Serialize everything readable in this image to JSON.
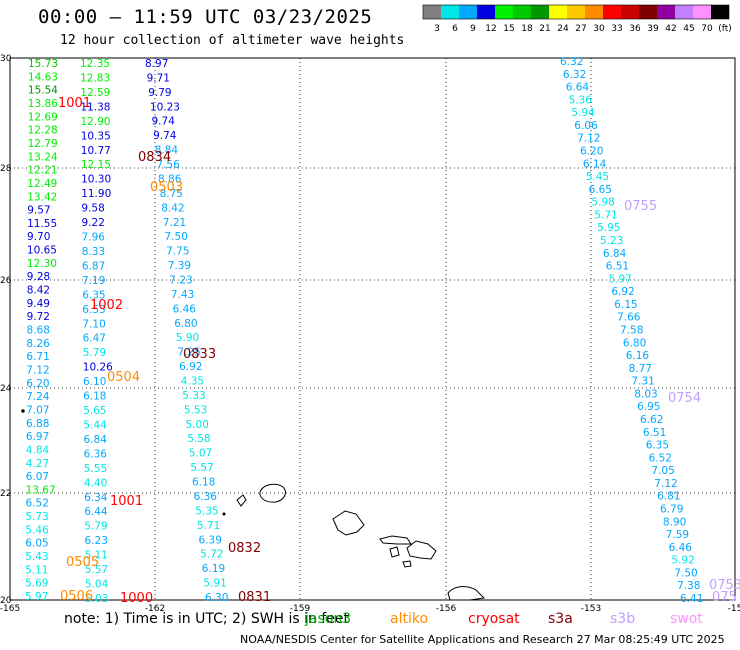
{
  "header": {
    "title": "00:00 — 11:59 UTC 03/23/2025",
    "subtitle": "12 hour collection of altimeter wave heights"
  },
  "colorbar": {
    "colors": [
      "#7f7f7f",
      "#00e5e5",
      "#00a8ff",
      "#0000e0",
      "#00ee00",
      "#00c800",
      "#009600",
      "#ffff00",
      "#ffc800",
      "#ff8c00",
      "#ff0000",
      "#c80000",
      "#800000",
      "#9000a0",
      "#c080ff",
      "#ff90ff",
      "#000000"
    ],
    "labels": [
      "3",
      "6",
      "9",
      "12",
      "15",
      "18",
      "21",
      "24",
      "27",
      "30",
      "33",
      "36",
      "39",
      "42",
      "45",
      "70",
      "(ft)"
    ]
  },
  "axes": {
    "x_ticks": [
      "-165",
      "-162",
      "-159",
      "-156",
      "-153",
      "-15"
    ],
    "y_ticks": [
      "30",
      "28",
      "26",
      "24",
      "22",
      "20"
    ]
  },
  "readings_left": [
    {
      "v": "15.73",
      "c": "#00c800"
    },
    {
      "v": "14.63",
      "c": "#00ee00"
    },
    {
      "v": "15.54",
      "c": "#009600"
    },
    {
      "v": "13.86",
      "c": "#00ee00"
    },
    {
      "v": "12.69",
      "c": "#00ee00"
    },
    {
      "v": "12.28",
      "c": "#00ee00"
    },
    {
      "v": "12.79",
      "c": "#00ee00"
    },
    {
      "v": "13.24",
      "c": "#00ee00"
    },
    {
      "v": "12.21",
      "c": "#00ee00"
    },
    {
      "v": "12.49",
      "c": "#00ee00"
    },
    {
      "v": "13.42",
      "c": "#00ee00"
    },
    {
      "v": "9.57",
      "c": "#0000e0"
    },
    {
      "v": "11.55",
      "c": "#0000e0"
    },
    {
      "v": "9.70",
      "c": "#0000e0"
    },
    {
      "v": "10.65",
      "c": "#0000e0"
    },
    {
      "v": "12.30",
      "c": "#00ee00"
    },
    {
      "v": "9.28",
      "c": "#0000e0"
    },
    {
      "v": "8.42",
      "c": "#0000e0"
    },
    {
      "v": "9.49",
      "c": "#0000e0"
    },
    {
      "v": "9.72",
      "c": "#0000e0"
    },
    {
      "v": "8.68",
      "c": "#00a8ff"
    },
    {
      "v": "8.26",
      "c": "#00a8ff"
    },
    {
      "v": "6.71",
      "c": "#00a8ff"
    },
    {
      "v": "7.12",
      "c": "#00a8ff"
    },
    {
      "v": "6.20",
      "c": "#00a8ff"
    },
    {
      "v": "7.24",
      "c": "#00a8ff"
    },
    {
      "v": "7.07",
      "c": "#00a8ff"
    },
    {
      "v": "6.88",
      "c": "#00a8ff"
    },
    {
      "v": "6.97",
      "c": "#00a8ff"
    },
    {
      "v": "4.84",
      "c": "#00e5e5"
    },
    {
      "v": "4.27",
      "c": "#00e5e5"
    },
    {
      "v": "6.07",
      "c": "#00a8ff"
    },
    {
      "v": "13.67",
      "c": "#00ee00"
    },
    {
      "v": "6.52",
      "c": "#00a8ff"
    },
    {
      "v": "5.73",
      "c": "#00e5e5"
    },
    {
      "v": "5.46",
      "c": "#00e5e5"
    },
    {
      "v": "6.05",
      "c": "#00a8ff"
    },
    {
      "v": "5.43",
      "c": "#00e5e5"
    },
    {
      "v": "5.11",
      "c": "#00e5e5"
    },
    {
      "v": "5.69",
      "c": "#00e5e5"
    },
    {
      "v": "5.97",
      "c": "#00e5e5"
    }
  ],
  "readings_mid": [
    {
      "v": "12.35",
      "c": "#00ee00"
    },
    {
      "v": "12.83",
      "c": "#00ee00"
    },
    {
      "v": "12.59",
      "c": "#00ee00"
    },
    {
      "v": "11.38",
      "c": "#0000e0"
    },
    {
      "v": "12.90",
      "c": "#00ee00"
    },
    {
      "v": "10.35",
      "c": "#0000e0"
    },
    {
      "v": "10.77",
      "c": "#0000e0"
    },
    {
      "v": "12.15",
      "c": "#00ee00"
    },
    {
      "v": "10.30",
      "c": "#0000e0"
    },
    {
      "v": "11.90",
      "c": "#0000e0"
    },
    {
      "v": "9.58",
      "c": "#0000e0"
    },
    {
      "v": "9.22",
      "c": "#0000e0"
    },
    {
      "v": "7.96",
      "c": "#00a8ff"
    },
    {
      "v": "8.33",
      "c": "#00a8ff"
    },
    {
      "v": "6.87",
      "c": "#00a8ff"
    },
    {
      "v": "7.19",
      "c": "#00a8ff"
    },
    {
      "v": "6.35",
      "c": "#00a8ff"
    },
    {
      "v": "6.53",
      "c": "#00a8ff"
    },
    {
      "v": "7.10",
      "c": "#00a8ff"
    },
    {
      "v": "6.47",
      "c": "#00a8ff"
    },
    {
      "v": "5.79",
      "c": "#00e5e5"
    },
    {
      "v": "10.26",
      "c": "#0000e0"
    },
    {
      "v": "6.10",
      "c": "#00a8ff"
    },
    {
      "v": "6.18",
      "c": "#00a8ff"
    },
    {
      "v": "5.65",
      "c": "#00e5e5"
    },
    {
      "v": "5.44",
      "c": "#00e5e5"
    },
    {
      "v": "6.84",
      "c": "#00a8ff"
    },
    {
      "v": "6.36",
      "c": "#00a8ff"
    },
    {
      "v": "5.55",
      "c": "#00e5e5"
    },
    {
      "v": "4.40",
      "c": "#00e5e5"
    },
    {
      "v": "6.34",
      "c": "#00a8ff"
    },
    {
      "v": "6.44",
      "c": "#00a8ff"
    },
    {
      "v": "5.79",
      "c": "#00e5e5"
    },
    {
      "v": "6.23",
      "c": "#00a8ff"
    },
    {
      "v": "5.11",
      "c": "#00e5e5"
    },
    {
      "v": "5.57",
      "c": "#00e5e5"
    },
    {
      "v": "5.04",
      "c": "#00e5e5"
    },
    {
      "v": "5.03",
      "c": "#00e5e5"
    }
  ],
  "readings_mid2": [
    {
      "v": "8.97",
      "c": "#0000e0"
    },
    {
      "v": "9.71",
      "c": "#0000e0"
    },
    {
      "v": "9.79",
      "c": "#0000e0"
    },
    {
      "v": "10.23",
      "c": "#0000e0"
    },
    {
      "v": "9.74",
      "c": "#0000e0"
    },
    {
      "v": "9.74",
      "c": "#0000e0"
    },
    {
      "v": "8.84",
      "c": "#00a8ff"
    },
    {
      "v": "7.56",
      "c": "#00a8ff"
    },
    {
      "v": "8.86",
      "c": "#00a8ff"
    },
    {
      "v": "8.75",
      "c": "#00a8ff"
    },
    {
      "v": "8.42",
      "c": "#00a8ff"
    },
    {
      "v": "7.21",
      "c": "#00a8ff"
    },
    {
      "v": "7.50",
      "c": "#00a8ff"
    },
    {
      "v": "7.75",
      "c": "#00a8ff"
    },
    {
      "v": "7.39",
      "c": "#00a8ff"
    },
    {
      "v": "7.23",
      "c": "#00a8ff"
    },
    {
      "v": "7.43",
      "c": "#00a8ff"
    },
    {
      "v": "6.46",
      "c": "#00a8ff"
    },
    {
      "v": "6.80",
      "c": "#00a8ff"
    },
    {
      "v": "5.90",
      "c": "#00e5e5"
    },
    {
      "v": "7.25",
      "c": "#00a8ff"
    },
    {
      "v": "6.92",
      "c": "#00a8ff"
    },
    {
      "v": "4.35",
      "c": "#00e5e5"
    },
    {
      "v": "5.33",
      "c": "#00e5e5"
    },
    {
      "v": "5.53",
      "c": "#00e5e5"
    },
    {
      "v": "5.00",
      "c": "#00e5e5"
    },
    {
      "v": "5.58",
      "c": "#00e5e5"
    },
    {
      "v": "5.07",
      "c": "#00e5e5"
    },
    {
      "v": "5.57",
      "c": "#00e5e5"
    },
    {
      "v": "6.18",
      "c": "#00a8ff"
    },
    {
      "v": "6.36",
      "c": "#00a8ff"
    },
    {
      "v": "5.35",
      "c": "#00e5e5"
    },
    {
      "v": "5.71",
      "c": "#00e5e5"
    },
    {
      "v": "6.39",
      "c": "#00a8ff"
    },
    {
      "v": "5.72",
      "c": "#00e5e5"
    },
    {
      "v": "6.19",
      "c": "#00a8ff"
    },
    {
      "v": "5.91",
      "c": "#00e5e5"
    },
    {
      "v": "6.30",
      "c": "#00a8ff"
    }
  ],
  "readings_right": [
    {
      "v": "6.32",
      "c": "#00a8ff"
    },
    {
      "v": "6.32",
      "c": "#00a8ff"
    },
    {
      "v": "6.64",
      "c": "#00a8ff"
    },
    {
      "v": "5.36",
      "c": "#00e5e5"
    },
    {
      "v": "5.94",
      "c": "#00e5e5"
    },
    {
      "v": "6.06",
      "c": "#00a8ff"
    },
    {
      "v": "7.12",
      "c": "#00a8ff"
    },
    {
      "v": "6.20",
      "c": "#00a8ff"
    },
    {
      "v": "6.14",
      "c": "#00a8ff"
    },
    {
      "v": "5.45",
      "c": "#00e5e5"
    },
    {
      "v": "6.65",
      "c": "#00a8ff"
    },
    {
      "v": "5.98",
      "c": "#00e5e5"
    },
    {
      "v": "5.71",
      "c": "#00e5e5"
    },
    {
      "v": "5.95",
      "c": "#00e5e5"
    },
    {
      "v": "5.23",
      "c": "#00e5e5"
    },
    {
      "v": "6.84",
      "c": "#00a8ff"
    },
    {
      "v": "6.51",
      "c": "#00a8ff"
    },
    {
      "v": "5.97",
      "c": "#00e5e5"
    },
    {
      "v": "6.92",
      "c": "#00a8ff"
    },
    {
      "v": "6.15",
      "c": "#00a8ff"
    },
    {
      "v": "7.66",
      "c": "#00a8ff"
    },
    {
      "v": "7.58",
      "c": "#00a8ff"
    },
    {
      "v": "6.80",
      "c": "#00a8ff"
    },
    {
      "v": "6.16",
      "c": "#00a8ff"
    },
    {
      "v": "8.77",
      "c": "#00a8ff"
    },
    {
      "v": "7.31",
      "c": "#00a8ff"
    },
    {
      "v": "8.03",
      "c": "#00a8ff"
    },
    {
      "v": "6.95",
      "c": "#00a8ff"
    },
    {
      "v": "6.62",
      "c": "#00a8ff"
    },
    {
      "v": "6.51",
      "c": "#00a8ff"
    },
    {
      "v": "6.35",
      "c": "#00a8ff"
    },
    {
      "v": "6.52",
      "c": "#00a8ff"
    },
    {
      "v": "7.05",
      "c": "#00a8ff"
    },
    {
      "v": "7.12",
      "c": "#00a8ff"
    },
    {
      "v": "6.81",
      "c": "#00a8ff"
    },
    {
      "v": "6.79",
      "c": "#00a8ff"
    },
    {
      "v": "8.90",
      "c": "#00a8ff"
    },
    {
      "v": "7.59",
      "c": "#00a8ff"
    },
    {
      "v": "6.46",
      "c": "#00a8ff"
    },
    {
      "v": "5.92",
      "c": "#00e5e5"
    },
    {
      "v": "7.50",
      "c": "#00a8ff"
    },
    {
      "v": "7.38",
      "c": "#00a8ff"
    },
    {
      "v": "6.41",
      "c": "#00a8ff"
    }
  ],
  "time_labels": [
    {
      "t": "1001",
      "c": "#ff0000",
      "k": "a"
    },
    {
      "t": "0834",
      "c": "#800000",
      "k": "b"
    },
    {
      "t": "0503",
      "c": "#ff8c00",
      "k": "c"
    },
    {
      "t": "0755",
      "c": "#c0a0ff",
      "k": "d"
    },
    {
      "t": "1002",
      "c": "#ff0000",
      "k": "e"
    },
    {
      "t": "0833",
      "c": "#800000",
      "k": "f"
    },
    {
      "t": "0504",
      "c": "#ff8c00",
      "k": "g"
    },
    {
      "t": "0754",
      "c": "#c0a0ff",
      "k": "h"
    },
    {
      "t": "1001",
      "c": "#ff0000",
      "k": "i"
    },
    {
      "t": "0832",
      "c": "#800000",
      "k": "j"
    },
    {
      "t": "0505",
      "c": "#ff8c00",
      "k": "k"
    },
    {
      "t": "0506",
      "c": "#ff8c00",
      "k": "l"
    },
    {
      "t": "1000",
      "c": "#ff0000",
      "k": "m"
    },
    {
      "t": "0831",
      "c": "#800000",
      "k": "n"
    },
    {
      "t": "0753",
      "c": "#c0a0ff",
      "k": "o"
    },
    {
      "t": "075",
      "c": "#c0a0ff",
      "k": "p"
    }
  ],
  "footer": {
    "note": "note: 1) Time is in UTC; 2) SWH is in feet",
    "satellites": [
      {
        "name": "jason3",
        "color": "#00aa00"
      },
      {
        "name": "altiko",
        "color": "#ff8c00"
      },
      {
        "name": "cryosat",
        "color": "#ff0000"
      },
      {
        "name": "s3a",
        "color": "#800000"
      },
      {
        "name": "s3b",
        "color": "#c0a0ff"
      },
      {
        "name": "swot",
        "color": "#ff90ff"
      }
    ],
    "credit": "NOAA/NESDIS Center for Satellite Applications and Research    27 Mar 08:25:49 UTC 2025"
  }
}
